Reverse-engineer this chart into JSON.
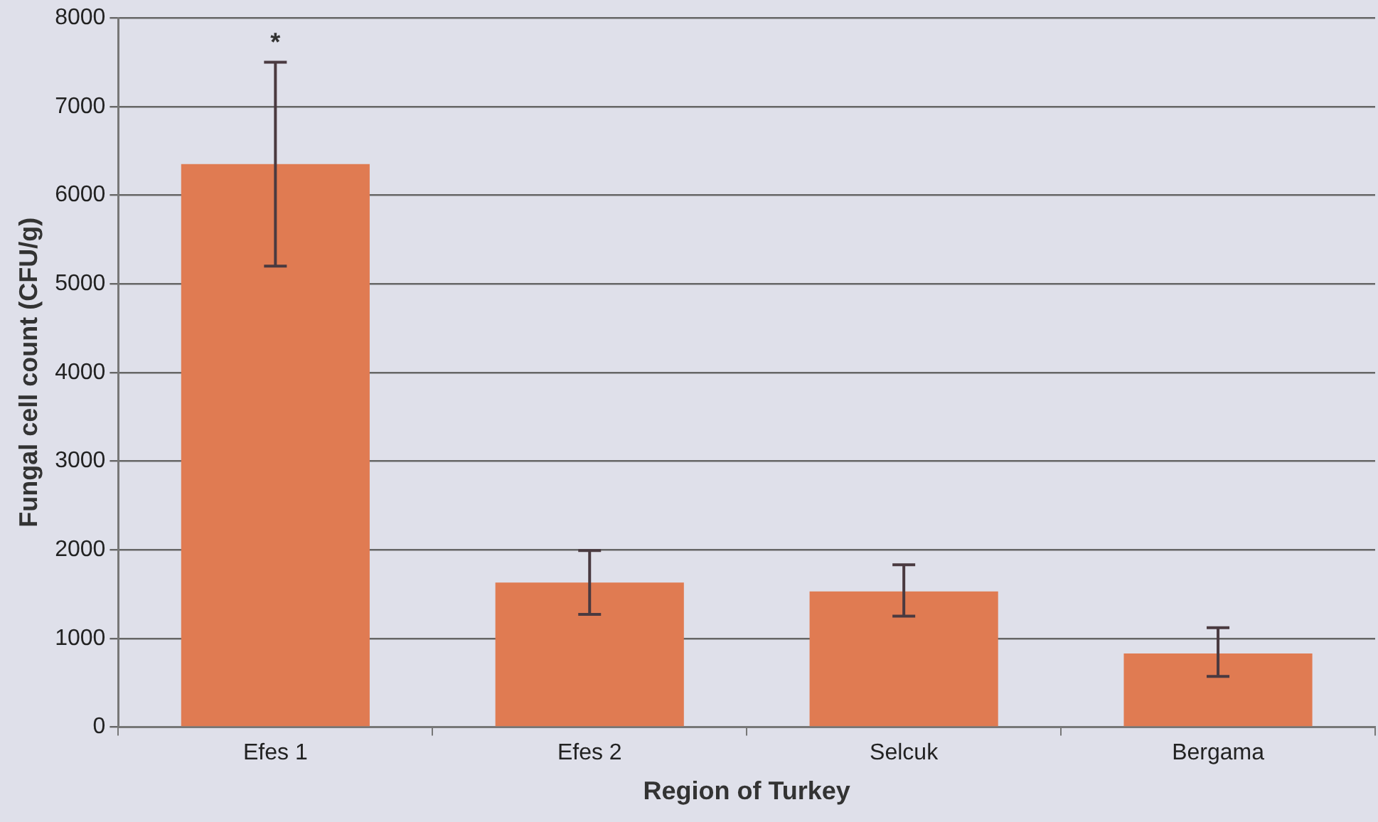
{
  "chart_data": {
    "type": "bar",
    "xlabel": "Region of Turkey",
    "ylabel": "Fungal cell count (CFU/g)",
    "categories": [
      "Efes 1",
      "Efes 2",
      "Selcuk",
      "Bergama"
    ],
    "values": [
      6350,
      1630,
      1530,
      830
    ],
    "color": "#e07b52",
    "errors": [
      [
        5200,
        7500
      ],
      [
        1270,
        1990
      ],
      [
        1250,
        1830
      ],
      [
        570,
        1120
      ]
    ],
    "annotations": [
      "*"
    ],
    "ylim": [
      0,
      8000
    ],
    "yticks": [
      0,
      1000,
      2000,
      3000,
      4000,
      5000,
      6000,
      7000,
      8000
    ],
    "grid": "y",
    "legend": false
  }
}
